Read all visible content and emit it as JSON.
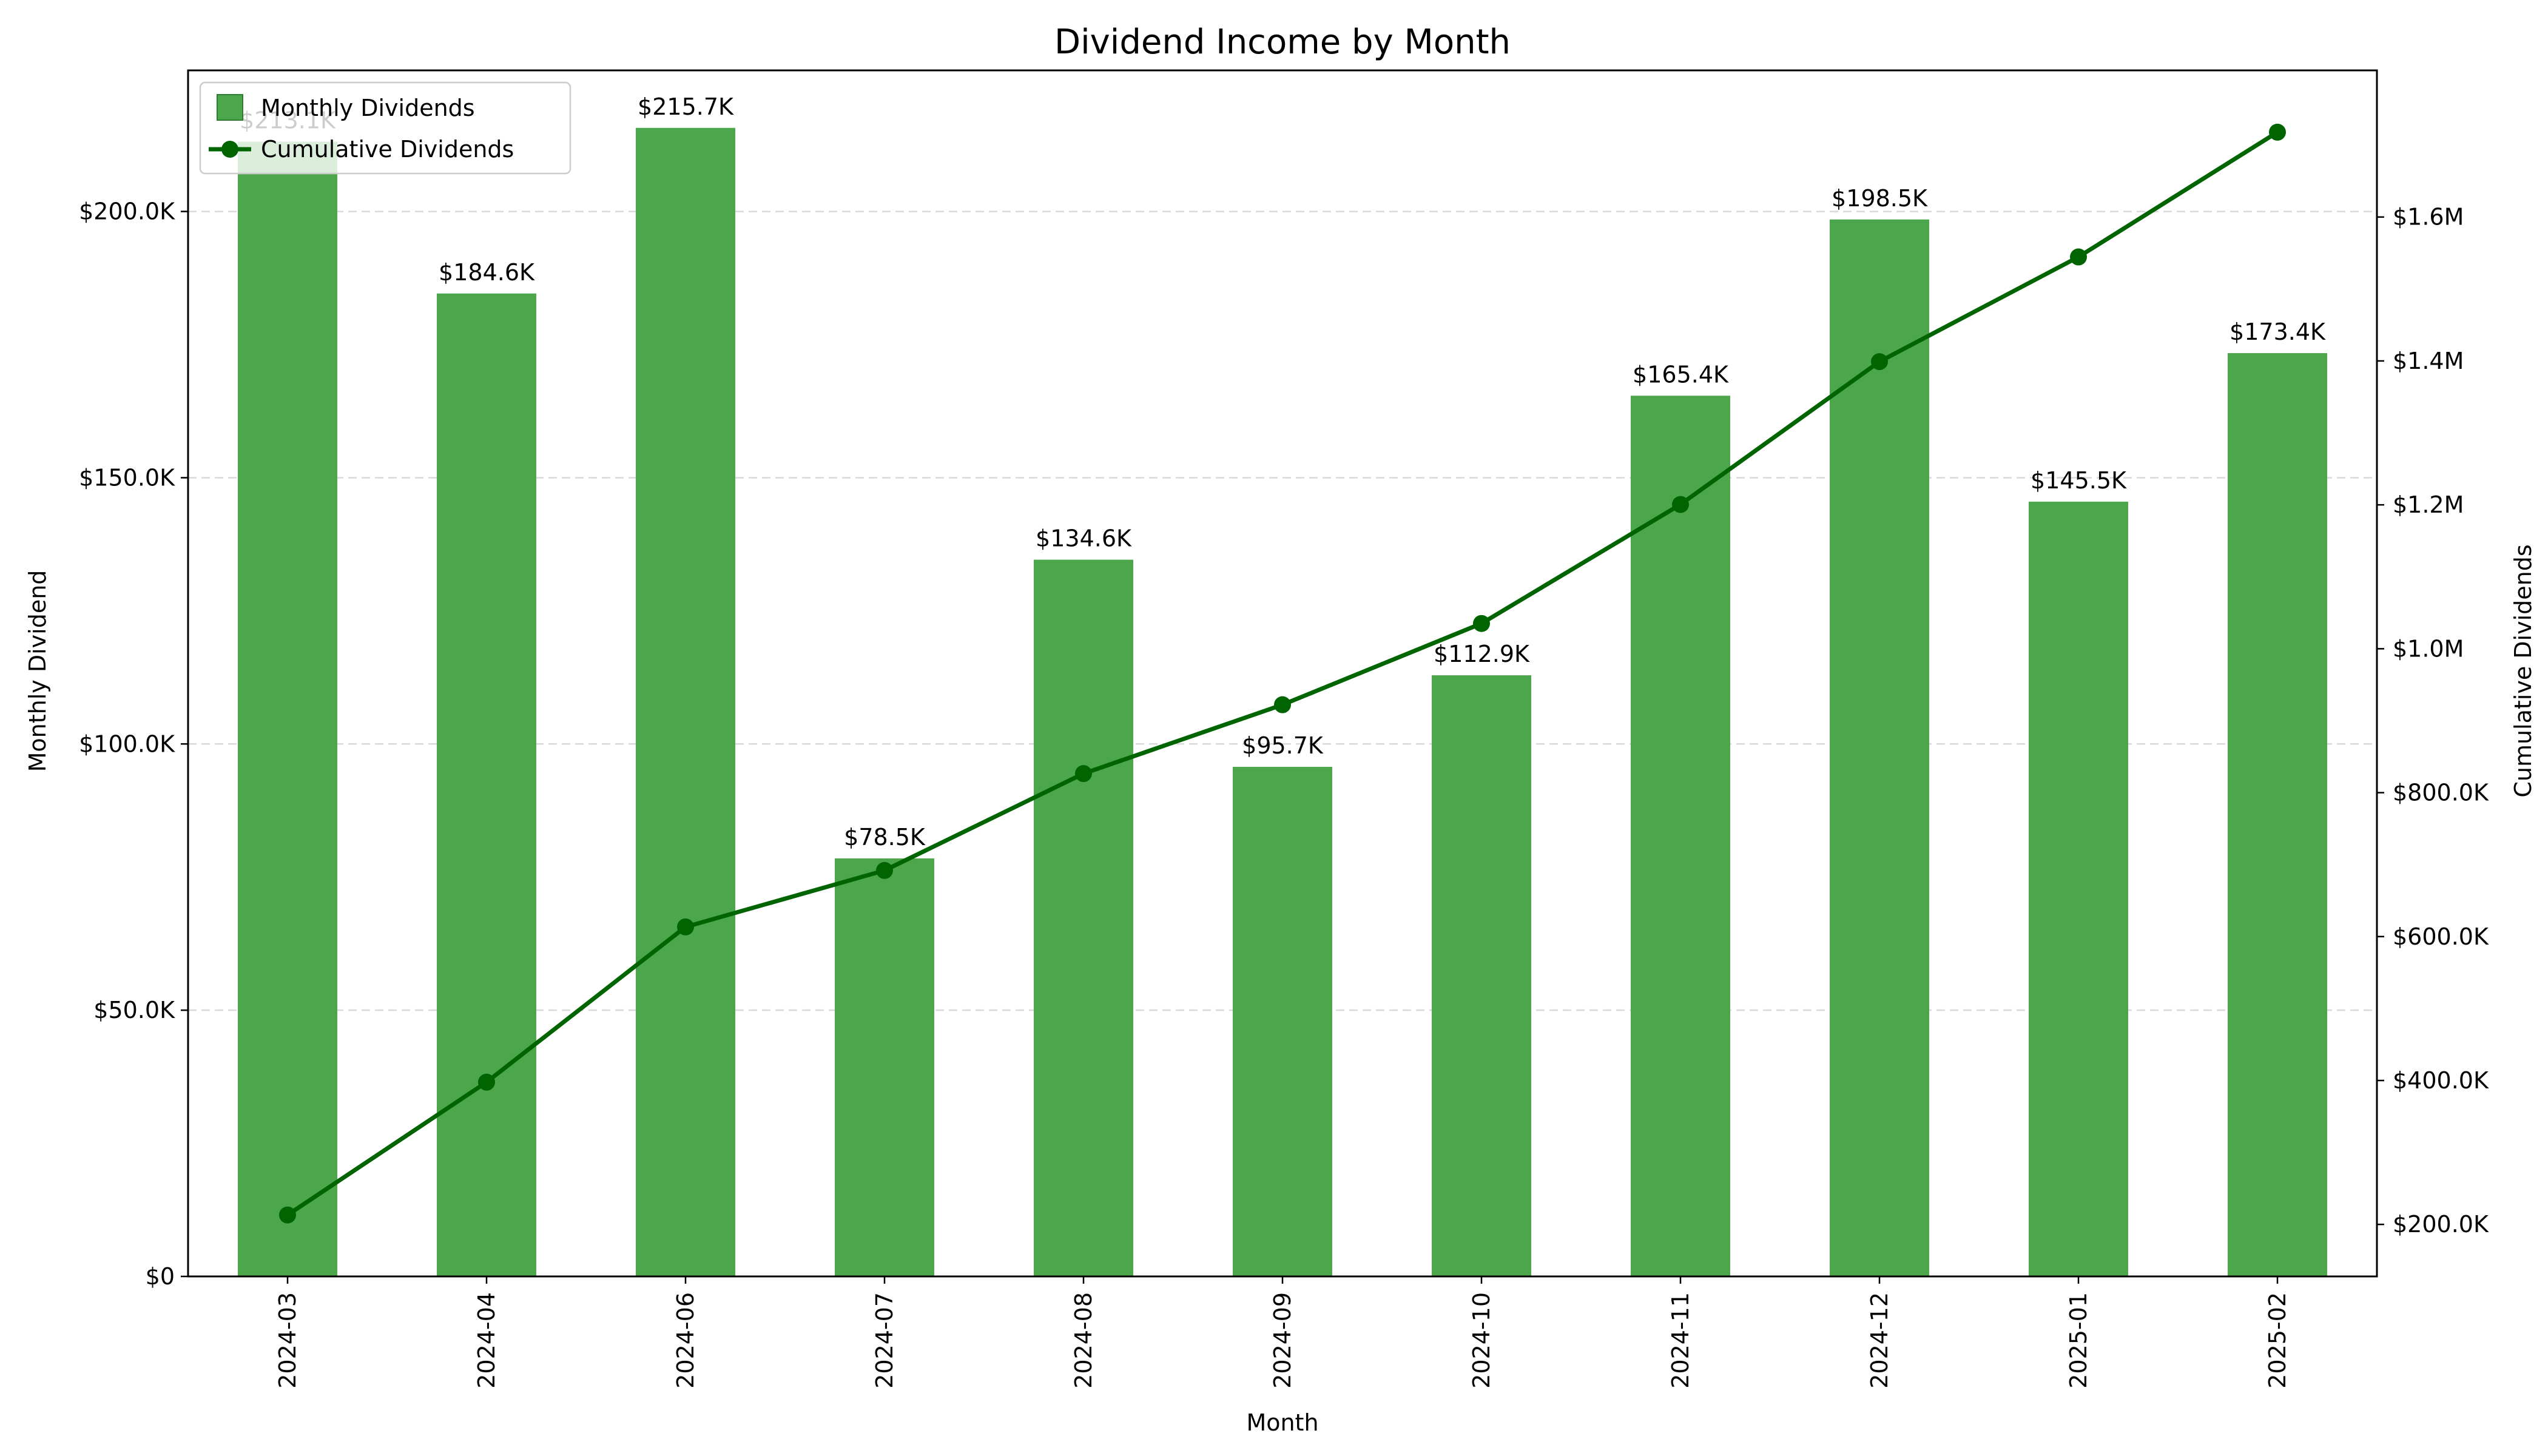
{
  "chart_data": {
    "type": "bar",
    "title": "Dividend Income by Month",
    "xlabel": "Month",
    "ylabel": "Monthly Dividend",
    "y2label": "Cumulative Dividends",
    "categories": [
      "2024-03",
      "2024-04",
      "2024-06",
      "2024-07",
      "2024-08",
      "2024-09",
      "2024-10",
      "2024-11",
      "2024-12",
      "2025-01",
      "2025-02"
    ],
    "series": [
      {
        "name": "Monthly Dividends",
        "type": "bar",
        "axis": "left",
        "color": "#4ca64c",
        "values": [
          213.1,
          184.6,
          215.7,
          78.5,
          134.6,
          95.7,
          112.9,
          165.4,
          198.5,
          145.5,
          173.4
        ],
        "labels": [
          "$213.1K",
          "$184.6K",
          "$215.7K",
          "$78.5K",
          "$134.6K",
          "$95.7K",
          "$112.9K",
          "$165.4K",
          "$198.5K",
          "$145.5K",
          "$173.4K"
        ]
      },
      {
        "name": "Cumulative Dividends",
        "type": "line",
        "axis": "right",
        "color": "#006400",
        "values": [
          213.1,
          397.7,
          613.4,
          691.9,
          826.5,
          922.2,
          1035.1,
          1200.5,
          1399.0,
          1544.5,
          1717.9
        ]
      }
    ],
    "ylim": [
      0,
      226.5
    ],
    "y2lim": [
      127.7,
      1803.8
    ],
    "yticks": [
      0,
      50,
      100,
      150,
      200
    ],
    "ytick_labels": [
      "$0",
      "$50.0K",
      "$100.0K",
      "$150.0K",
      "$200.0K"
    ],
    "y2ticks": [
      200,
      400,
      600,
      800,
      1000,
      1200,
      1400,
      1600
    ],
    "y2tick_labels": [
      "$200.0K",
      "$400.0K",
      "$600.0K",
      "$800.0K",
      "$1.0M",
      "$1.2M",
      "$1.4M",
      "$1.6M"
    ],
    "grid": "y-dashed",
    "legend": "top-left"
  }
}
